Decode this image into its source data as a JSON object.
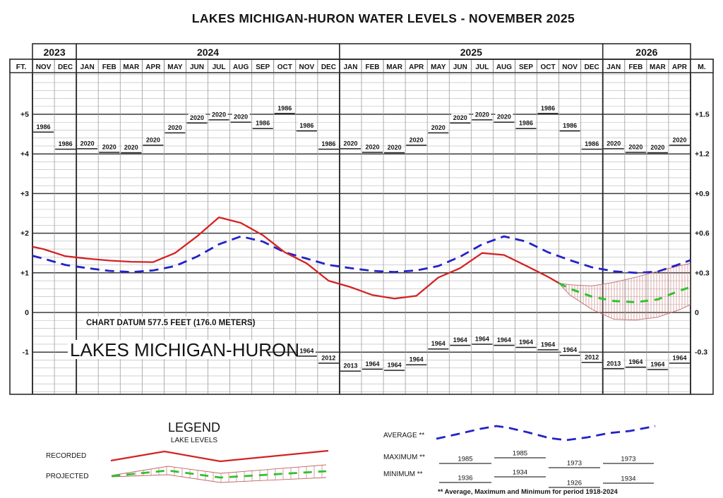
{
  "title": "LAKES MICHIGAN-HURON WATER LEVELS - NOVEMBER 2025",
  "annotations": {
    "chart_datum": "CHART DATUM  577.5 FEET (176.0 METERS)",
    "lake_name": "LAKES MICHIGAN-HURON"
  },
  "chart_data": {
    "type": "line",
    "title": "LAKES MICHIGAN-HURON WATER LEVELS - NOVEMBER 2025",
    "unit_left": "FT.",
    "unit_right": "M.",
    "years": [
      {
        "label": "2023",
        "start": 0,
        "span": 2
      },
      {
        "label": "2024",
        "start": 2,
        "span": 12
      },
      {
        "label": "2025",
        "start": 14,
        "span": 12
      },
      {
        "label": "2026",
        "start": 26,
        "span": 4
      }
    ],
    "months": [
      "NOV",
      "DEC",
      "JAN",
      "FEB",
      "MAR",
      "APR",
      "MAY",
      "JUN",
      "JUL",
      "AUG",
      "SEP",
      "OCT",
      "NOV",
      "DEC",
      "JAN",
      "FEB",
      "MAR",
      "APR",
      "MAY",
      "JUN",
      "JUL",
      "AUG",
      "SEP",
      "OCT",
      "NOV",
      "DEC",
      "JAN",
      "FEB",
      "MAR",
      "APR"
    ],
    "y_axis": {
      "ticks_ft": [
        5,
        4,
        3,
        2,
        1,
        0,
        -1
      ],
      "labels_left": [
        "+5",
        "+4",
        "+3",
        "+2",
        "+1",
        "0",
        "-1"
      ],
      "labels_right": [
        "+1.5",
        "+1.2",
        "+0.9",
        "+0.6",
        "+0.3",
        "0",
        "-0.3"
      ],
      "minor_step_ft": 0.2,
      "top_ft": 6.05,
      "bottom_ft": -2.06
    },
    "series": [
      {
        "name": "recorded",
        "color": "#d42222",
        "style": "solid",
        "x": [
          -0.5,
          0,
          1,
          2,
          3,
          4,
          5,
          6,
          7,
          8,
          9,
          10,
          11,
          12,
          13,
          14,
          15,
          16,
          17,
          18,
          19,
          20,
          21,
          22,
          23,
          23.5
        ],
        "y": [
          1.66,
          1.6,
          1.42,
          1.36,
          1.31,
          1.28,
          1.27,
          1.5,
          1.92,
          2.4,
          2.26,
          1.95,
          1.52,
          1.24,
          0.8,
          0.64,
          0.44,
          0.35,
          0.42,
          0.88,
          1.12,
          1.5,
          1.45,
          1.18,
          0.9,
          0.74
        ]
      },
      {
        "name": "average",
        "color": "#2323c8",
        "style": "dashed",
        "x": [
          -0.5,
          0,
          1,
          2,
          3,
          4,
          5,
          6,
          7,
          8,
          9,
          10,
          11,
          12,
          13,
          14,
          15,
          16,
          17,
          18,
          19,
          20,
          21,
          22,
          23,
          24,
          25,
          26,
          27,
          28,
          29,
          29.5
        ],
        "y": [
          1.43,
          1.36,
          1.2,
          1.12,
          1.05,
          1.02,
          1.06,
          1.17,
          1.41,
          1.72,
          1.92,
          1.79,
          1.52,
          1.36,
          1.2,
          1.12,
          1.05,
          1.02,
          1.06,
          1.17,
          1.41,
          1.72,
          1.92,
          1.79,
          1.52,
          1.32,
          1.14,
          1.04,
          1.0,
          1.03,
          1.22,
          1.32
        ]
      },
      {
        "name": "projected",
        "color": "#2ec22e",
        "style": "dashed",
        "x": [
          23.5,
          24,
          25,
          26,
          27,
          28,
          29,
          29.5
        ],
        "y": [
          0.74,
          0.6,
          0.4,
          0.29,
          0.26,
          0.33,
          0.55,
          0.64
        ]
      }
    ],
    "projection_band": {
      "color": "#c06868",
      "x": [
        23.5,
        24,
        25,
        26,
        27,
        28,
        29,
        29.5
      ],
      "top": [
        0.74,
        0.7,
        0.67,
        0.76,
        0.89,
        1.04,
        1.18,
        1.24
      ],
      "bottom": [
        0.74,
        0.44,
        0.08,
        -0.17,
        -0.19,
        -0.12,
        0.07,
        0.2
      ]
    },
    "max_ticks": [
      {
        "m": 0,
        "year": "1986",
        "ft": 4.55
      },
      {
        "m": 1,
        "year": "1986",
        "ft": 4.12
      },
      {
        "m": 2,
        "year": "2020",
        "ft": 4.13
      },
      {
        "m": 3,
        "year": "2020",
        "ft": 4.04
      },
      {
        "m": 4,
        "year": "2020",
        "ft": 4.03
      },
      {
        "m": 5,
        "year": "2020",
        "ft": 4.22
      },
      {
        "m": 6,
        "year": "2020",
        "ft": 4.53
      },
      {
        "m": 7,
        "year": "2020",
        "ft": 4.78
      },
      {
        "m": 8,
        "year": "2020",
        "ft": 4.86
      },
      {
        "m": 9,
        "year": "2020",
        "ft": 4.8
      },
      {
        "m": 10,
        "year": "1986",
        "ft": 4.64
      },
      {
        "m": 11,
        "year": "1986",
        "ft": 5.02
      },
      {
        "m": 12,
        "year": "1986",
        "ft": 4.58
      },
      {
        "m": 13,
        "year": "1986",
        "ft": 4.12
      },
      {
        "m": 14,
        "year": "2020",
        "ft": 4.13
      },
      {
        "m": 15,
        "year": "2020",
        "ft": 4.04
      },
      {
        "m": 16,
        "year": "2020",
        "ft": 4.03
      },
      {
        "m": 17,
        "year": "2020",
        "ft": 4.22
      },
      {
        "m": 18,
        "year": "2020",
        "ft": 4.53
      },
      {
        "m": 19,
        "year": "2020",
        "ft": 4.78
      },
      {
        "m": 20,
        "year": "2020",
        "ft": 4.86
      },
      {
        "m": 21,
        "year": "2020",
        "ft": 4.8
      },
      {
        "m": 22,
        "year": "1986",
        "ft": 4.64
      },
      {
        "m": 23,
        "year": "1986",
        "ft": 5.02
      },
      {
        "m": 24,
        "year": "1986",
        "ft": 4.58
      },
      {
        "m": 25,
        "year": "1986",
        "ft": 4.12
      },
      {
        "m": 26,
        "year": "2020",
        "ft": 4.13
      },
      {
        "m": 27,
        "year": "2020",
        "ft": 4.04
      },
      {
        "m": 28,
        "year": "2020",
        "ft": 4.03
      },
      {
        "m": 29,
        "year": "2020",
        "ft": 4.22
      }
    ],
    "min_ticks": [
      {
        "m": 12,
        "year": "1964",
        "ft": -1.1
      },
      {
        "m": 13,
        "year": "2012",
        "ft": -1.28
      },
      {
        "m": 14,
        "year": "2013",
        "ft": -1.48
      },
      {
        "m": 15,
        "year": "1964",
        "ft": -1.43
      },
      {
        "m": 16,
        "year": "1964",
        "ft": -1.46
      },
      {
        "m": 17,
        "year": "1964",
        "ft": -1.32
      },
      {
        "m": 18,
        "year": "1964",
        "ft": -0.92
      },
      {
        "m": 19,
        "year": "1964",
        "ft": -0.83
      },
      {
        "m": 20,
        "year": "1964",
        "ft": -0.8
      },
      {
        "m": 21,
        "year": "1964",
        "ft": -0.83
      },
      {
        "m": 22,
        "year": "1964",
        "ft": -0.88
      },
      {
        "m": 23,
        "year": "1964",
        "ft": -0.94
      },
      {
        "m": 24,
        "year": "1964",
        "ft": -1.08
      },
      {
        "m": 25,
        "year": "2012",
        "ft": -1.26
      },
      {
        "m": 26,
        "year": "2013",
        "ft": -1.42
      },
      {
        "m": 27,
        "year": "1964",
        "ft": -1.38
      },
      {
        "m": 28,
        "year": "1964",
        "ft": -1.44
      },
      {
        "m": 29,
        "year": "1964",
        "ft": -1.28
      }
    ]
  },
  "legend": {
    "title": "LEGEND",
    "subtitle": "LAKE LEVELS",
    "recorded_label": "RECORDED",
    "projected_label": "PROJECTED",
    "average_label": "AVERAGE **",
    "maximum_label": "MAXIMUM **",
    "minimum_label": "MINIMUM **",
    "max_years": [
      "1985",
      "1985",
      "1973",
      "1973"
    ],
    "min_years": [
      "1936",
      "1934",
      "1926",
      "1934"
    ],
    "footnote": "** Average, Maximum and Minimum for period 1918-2024"
  }
}
